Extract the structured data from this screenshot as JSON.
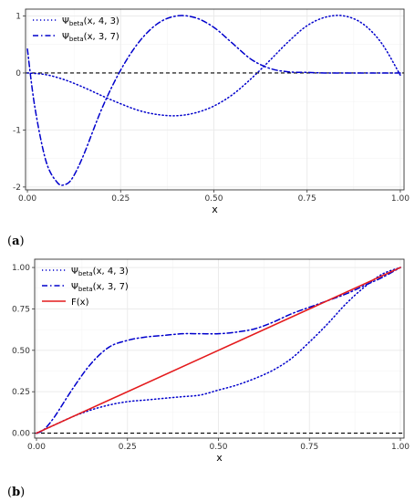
{
  "figure": {
    "panel_labels": [
      {
        "open": "(",
        "letter": "a",
        "close": ")"
      },
      {
        "open": "(",
        "letter": "b",
        "close": ")"
      }
    ]
  },
  "colors": {
    "blue": "#0000cc",
    "red": "#e41a1c",
    "zero_line": "#000000",
    "grid_major": "#ebebeb",
    "grid_minor": "#f4f4f4",
    "panel_border": "#333333"
  },
  "chart_data": [
    {
      "type": "line",
      "title": "",
      "xlabel": "x",
      "ylabel": "",
      "xlim": [
        -0.005,
        1.01
      ],
      "ylim": [
        -2.05,
        1.12
      ],
      "xticks": [
        0,
        0.25,
        0.5,
        0.75,
        1
      ],
      "xtick_labels": [
        "0.00",
        "0.25",
        "0.50",
        "0.75",
        "1.00"
      ],
      "yticks": [
        -2,
        -1,
        0,
        1
      ],
      "ytick_labels": [
        "-2",
        "-1",
        "0",
        "1"
      ],
      "grid": true,
      "legend_position": "top-left",
      "reference_line": {
        "y": 0,
        "style": "dashed"
      },
      "series": [
        {
          "name": "Ψ",
          "sub": "beta",
          "args": "(x, 4, 3)",
          "style": "dotted",
          "color": "#0000cc",
          "x": [
            0,
            0.05,
            0.1,
            0.15,
            0.2,
            0.25,
            0.3,
            0.35,
            0.4,
            0.45,
            0.5,
            0.55,
            0.6,
            0.65,
            0.7,
            0.75,
            0.8,
            0.85,
            0.9,
            0.95,
            1.0
          ],
          "y": [
            0,
            -0.03,
            -0.12,
            -0.25,
            -0.4,
            -0.54,
            -0.66,
            -0.73,
            -0.75,
            -0.7,
            -0.58,
            -0.38,
            -0.1,
            0.22,
            0.55,
            0.83,
            0.98,
            1.0,
            0.86,
            0.52,
            -0.04
          ]
        },
        {
          "name": "Ψ",
          "sub": "beta",
          "args": "(x, 3, 7)",
          "style": "dashdot",
          "color": "#0000cc",
          "x": [
            0,
            0.02,
            0.05,
            0.08,
            0.1,
            0.12,
            0.15,
            0.2,
            0.25,
            0.3,
            0.35,
            0.4,
            0.45,
            0.5,
            0.55,
            0.6,
            0.65,
            0.7,
            0.75,
            0.8,
            0.85,
            0.9,
            0.95,
            1.0
          ],
          "y": [
            0.42,
            -0.6,
            -1.55,
            -1.92,
            -1.96,
            -1.85,
            -1.45,
            -0.62,
            0.05,
            0.55,
            0.87,
            1.0,
            0.97,
            0.8,
            0.52,
            0.24,
            0.08,
            0.02,
            0.01,
            0.0,
            0.0,
            0.0,
            0.0,
            0.0
          ]
        }
      ]
    },
    {
      "type": "line",
      "title": "",
      "xlabel": "x",
      "ylabel": "",
      "xlim": [
        -0.005,
        1.01
      ],
      "ylim": [
        -0.03,
        1.05
      ],
      "xticks": [
        0,
        0.25,
        0.5,
        0.75,
        1
      ],
      "xtick_labels": [
        "0.00",
        "0.25",
        "0.50",
        "0.75",
        "1.00"
      ],
      "yticks": [
        0,
        0.25,
        0.5,
        0.75,
        1
      ],
      "ytick_labels": [
        "0.00",
        "0.25",
        "0.50",
        "0.75",
        "1.00"
      ],
      "grid": true,
      "legend_position": "top-left",
      "reference_line": {
        "y": 0,
        "style": "dashed"
      },
      "series": [
        {
          "name": "Ψ",
          "sub": "beta",
          "args": "(x, 4, 3)",
          "style": "dotted",
          "color": "#0000cc",
          "x": [
            0,
            0.05,
            0.1,
            0.15,
            0.2,
            0.25,
            0.3,
            0.35,
            0.4,
            0.45,
            0.5,
            0.55,
            0.6,
            0.65,
            0.7,
            0.75,
            0.8,
            0.85,
            0.9,
            0.95,
            1.0
          ],
          "y": [
            0,
            0.05,
            0.1,
            0.14,
            0.17,
            0.19,
            0.2,
            0.21,
            0.22,
            0.23,
            0.26,
            0.29,
            0.33,
            0.38,
            0.45,
            0.55,
            0.66,
            0.78,
            0.88,
            0.96,
            1.0
          ]
        },
        {
          "name": "Ψ",
          "sub": "beta",
          "args": "(x, 3, 7)",
          "style": "dashdot",
          "color": "#0000cc",
          "x": [
            0,
            0.02,
            0.05,
            0.1,
            0.15,
            0.2,
            0.25,
            0.3,
            0.35,
            0.4,
            0.45,
            0.5,
            0.55,
            0.6,
            0.65,
            0.7,
            0.75,
            0.8,
            0.85,
            0.9,
            0.95,
            1.0
          ],
          "y": [
            0,
            0.02,
            0.1,
            0.27,
            0.42,
            0.52,
            0.56,
            0.58,
            0.59,
            0.6,
            0.6,
            0.6,
            0.61,
            0.63,
            0.67,
            0.72,
            0.76,
            0.8,
            0.84,
            0.89,
            0.94,
            1.0
          ]
        },
        {
          "name": "F",
          "sub": "",
          "args": "(x)",
          "style": "solid",
          "color": "#e41a1c",
          "x": [
            0,
            1
          ],
          "y": [
            0,
            1
          ]
        }
      ]
    }
  ]
}
